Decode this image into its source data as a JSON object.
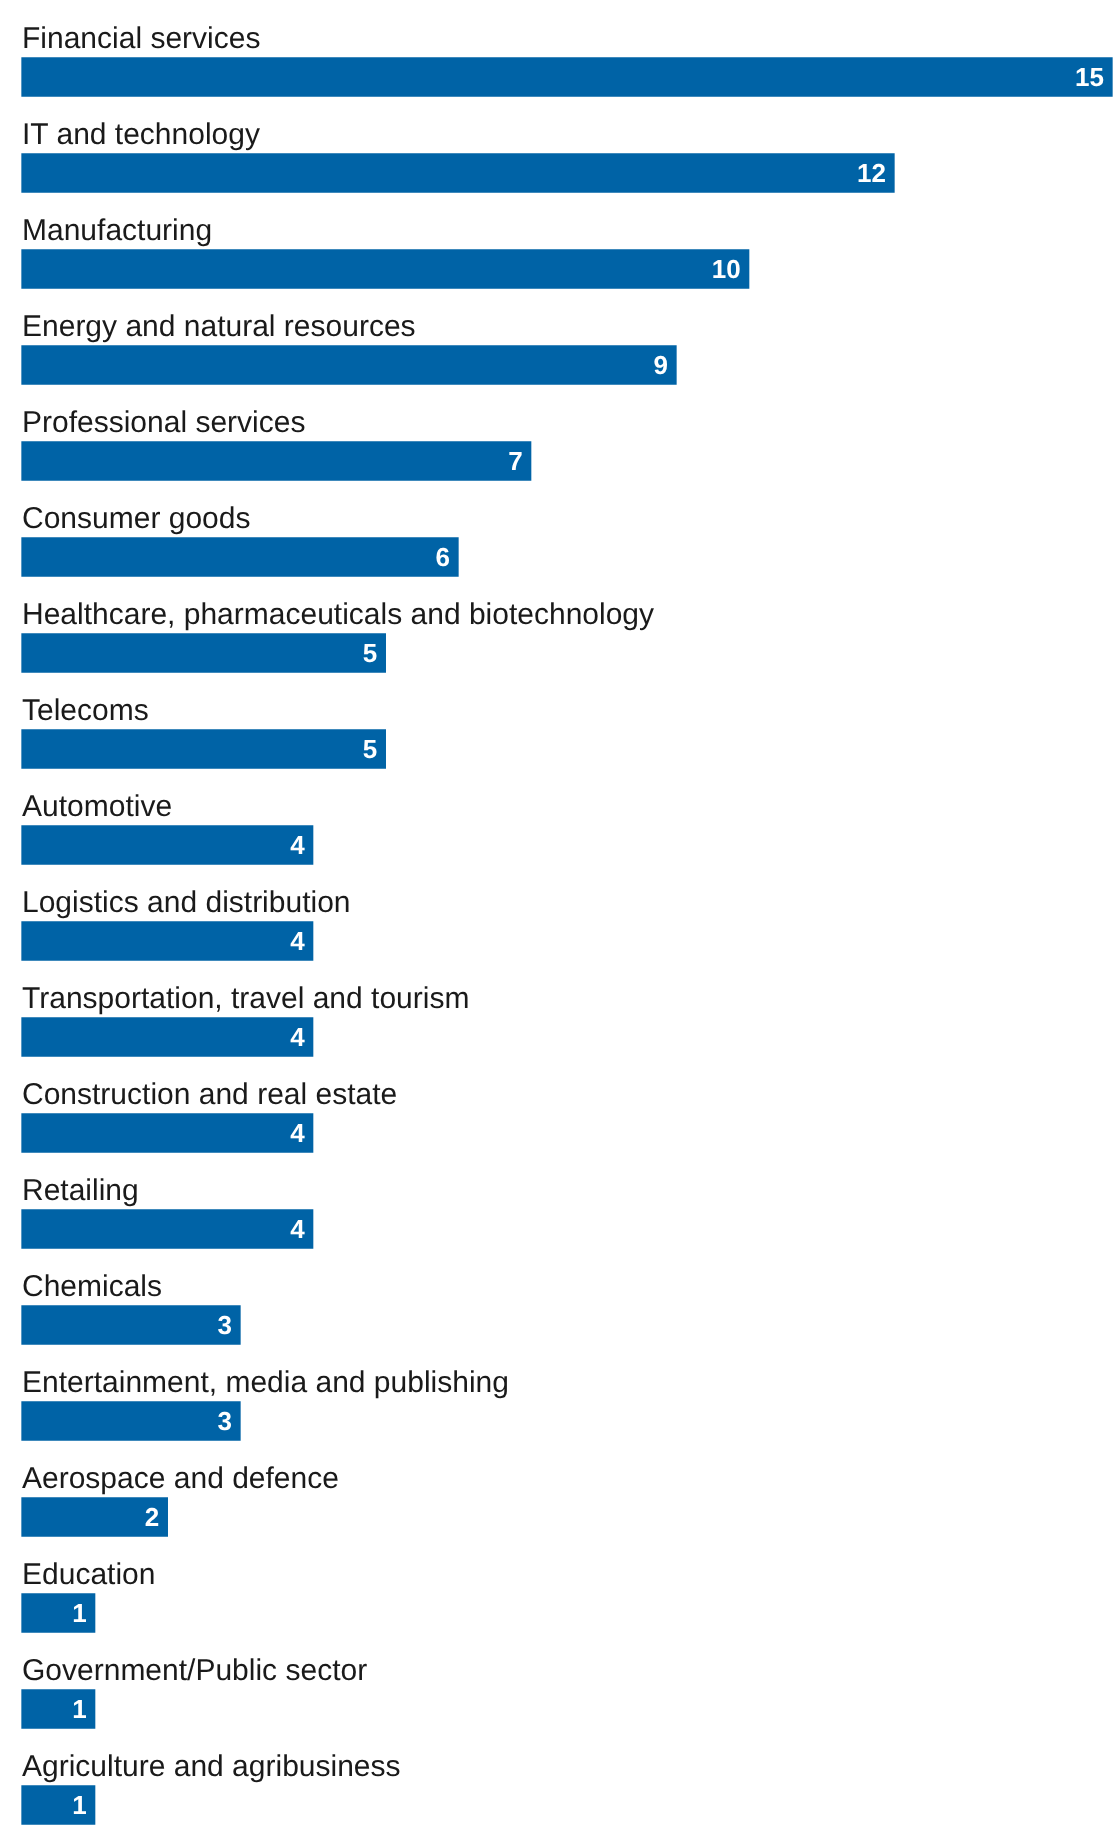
{
  "chart_data": {
    "type": "bar",
    "orientation": "horizontal",
    "categories": [
      "Financial services",
      "IT and technology",
      "Manufacturing",
      "Energy and natural resources",
      "Professional services",
      "Consumer goods",
      "Healthcare, pharmaceuticals and biotechnology",
      "Telecoms",
      "Automotive",
      "Logistics and distribution",
      "Transportation, travel and tourism",
      "Construction and real estate",
      "Retailing",
      "Chemicals",
      "Entertainment, media and publishing",
      "Aerospace and defence",
      "Education",
      "Government/Public sector",
      "Agriculture and agribusiness"
    ],
    "values": [
      15,
      12,
      10,
      9,
      7,
      6,
      5,
      5,
      4,
      4,
      4,
      4,
      4,
      3,
      3,
      2,
      1,
      1,
      1
    ],
    "color": "#0063a6",
    "data_labels": true
  }
}
